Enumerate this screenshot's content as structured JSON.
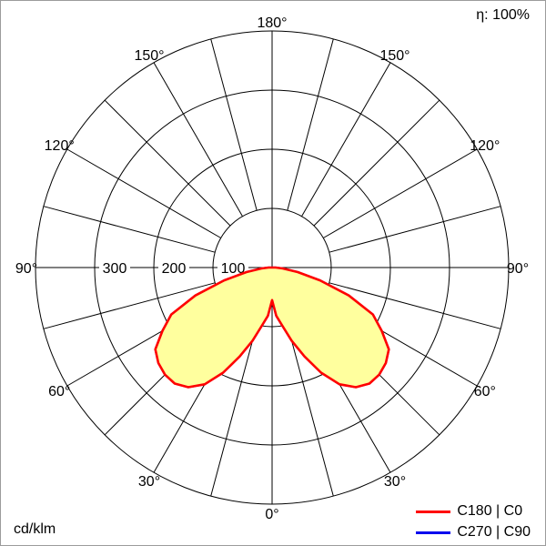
{
  "chart_data": {
    "type": "line",
    "subtype": "polar-photometric-intensity-distribution",
    "units_label": "cd/klm",
    "efficiency_label": "η: 100%",
    "legend_position": "bottom-right",
    "grid": "polar",
    "spoke_step_deg": 15,
    "radial_axis": {
      "min": 0,
      "max": 400,
      "ring_step": 100,
      "labeled_ticks": [
        "300",
        "200",
        "100"
      ],
      "labeled_tick_values": [
        300,
        200,
        100
      ]
    },
    "angle_ticks": [
      {
        "value": 0,
        "label": "0°"
      },
      {
        "value": 30,
        "label": "30°"
      },
      {
        "value": 60,
        "label": "60°"
      },
      {
        "value": 90,
        "label": "90°"
      },
      {
        "value": 120,
        "label": "120°"
      },
      {
        "value": 150,
        "label": "150°"
      },
      {
        "value": 180,
        "label": "180°"
      }
    ],
    "series": [
      {
        "name": "C180 | C0",
        "color": "#ff0000",
        "fill": "#ffff9e",
        "symmetric": true,
        "gamma_deg": [
          0,
          5,
          10,
          15,
          20,
          25,
          30,
          35,
          40,
          45,
          50,
          55,
          60,
          65,
          70,
          75,
          80,
          85,
          90
        ],
        "values_cd_per_klm": [
          55,
          82,
          100,
          128,
          160,
          196,
          228,
          247,
          256,
          256,
          251,
          241,
          214,
          188,
          138,
          84,
          44,
          18,
          6
        ]
      },
      {
        "name": "C270 | C90",
        "color": "#0000ee",
        "fill": "none",
        "symmetric": true,
        "gamma_deg": [
          0,
          5,
          10,
          15,
          20,
          25,
          30,
          35,
          40,
          45,
          50,
          55,
          60,
          65,
          70,
          75,
          80,
          85,
          90
        ],
        "values_cd_per_klm": [
          55,
          82,
          100,
          128,
          160,
          196,
          228,
          247,
          256,
          256,
          251,
          241,
          214,
          188,
          138,
          84,
          44,
          18,
          6
        ]
      }
    ]
  }
}
